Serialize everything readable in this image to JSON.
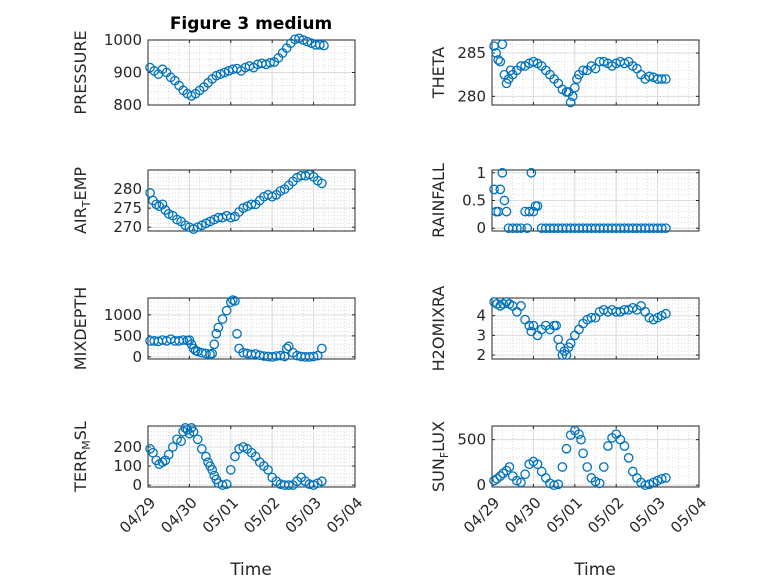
{
  "figure": {
    "title": "Figure 3 medium",
    "xlabel": "Time"
  },
  "x_ticks": [
    "04/29",
    "04/30",
    "05/01",
    "05/02",
    "05/03",
    "05/04"
  ],
  "marker_color": "#0072BD",
  "chart_data": [
    {
      "type": "scatter",
      "id": "pressure",
      "ylabel": "PRESSURE",
      "ylabel_main": "PRESSURE",
      "ylabel_sub": "",
      "ylabel_rest": "",
      "ylim": [
        800,
        1000
      ],
      "yticks": [
        800,
        900,
        1000
      ],
      "xlim": [
        0,
        5
      ],
      "grid": true,
      "x": [
        0.05,
        0.15,
        0.25,
        0.35,
        0.45,
        0.55,
        0.65,
        0.75,
        0.85,
        0.95,
        1.05,
        1.15,
        1.25,
        1.35,
        1.45,
        1.55,
        1.65,
        1.75,
        1.85,
        1.95,
        2.05,
        2.15,
        2.25,
        2.35,
        2.45,
        2.55,
        2.65,
        2.75,
        2.85,
        2.95,
        3.05,
        3.15,
        3.25,
        3.35,
        3.45,
        3.55,
        3.65,
        3.75,
        3.85,
        3.95,
        4.05,
        4.15,
        4.25
      ],
      "y": [
        915,
        905,
        895,
        910,
        900,
        885,
        875,
        860,
        845,
        835,
        828,
        835,
        845,
        855,
        868,
        880,
        890,
        895,
        900,
        905,
        910,
        912,
        905,
        915,
        920,
        915,
        925,
        928,
        925,
        930,
        932,
        945,
        960,
        975,
        990,
        1002,
        1005,
        1000,
        995,
        990,
        985,
        985,
        983
      ]
    },
    {
      "type": "scatter",
      "id": "theta",
      "ylabel": "THETA",
      "ylabel_main": "THETA",
      "ylabel_sub": "",
      "ylabel_rest": "",
      "ylim": [
        279,
        286.5
      ],
      "yticks": [
        280,
        285
      ],
      "xlim": [
        0,
        5
      ],
      "grid": true,
      "x": [
        0.05,
        0.1,
        0.15,
        0.2,
        0.25,
        0.3,
        0.35,
        0.4,
        0.45,
        0.5,
        0.6,
        0.7,
        0.8,
        0.9,
        1.0,
        1.1,
        1.2,
        1.3,
        1.4,
        1.5,
        1.6,
        1.7,
        1.8,
        1.85,
        1.9,
        1.95,
        2.0,
        2.05,
        2.1,
        2.2,
        2.3,
        2.4,
        2.5,
        2.6,
        2.7,
        2.8,
        2.9,
        3.0,
        3.1,
        3.2,
        3.3,
        3.4,
        3.5,
        3.6,
        3.7,
        3.8,
        3.9,
        4.0,
        4.1,
        4.2
      ],
      "y": [
        285.8,
        285,
        284.2,
        284,
        286,
        282.5,
        281.5,
        282,
        283,
        282.5,
        283,
        283.5,
        283.5,
        283.8,
        284,
        283.8,
        283.5,
        283,
        282.5,
        282,
        281.5,
        280.8,
        280.5,
        280.5,
        279.3,
        280,
        281,
        282,
        282.5,
        283,
        283,
        283.5,
        283.2,
        284,
        284,
        283.8,
        283.5,
        283.8,
        284,
        283.8,
        284,
        283.5,
        283.2,
        282.5,
        282,
        282.3,
        282.2,
        282,
        282,
        282
      ]
    },
    {
      "type": "scatter",
      "id": "airtemp",
      "ylabel": "AIR_TEMP",
      "ylabel_main": "AIR",
      "ylabel_sub": "T",
      "ylabel_rest": "EMP",
      "ylim": [
        269,
        285
      ],
      "yticks": [
        270,
        275,
        280
      ],
      "xlim": [
        0,
        5
      ],
      "grid": true,
      "x": [
        0.05,
        0.12,
        0.2,
        0.27,
        0.35,
        0.42,
        0.5,
        0.6,
        0.7,
        0.8,
        0.9,
        1.0,
        1.1,
        1.2,
        1.3,
        1.4,
        1.5,
        1.6,
        1.7,
        1.8,
        1.9,
        2.0,
        2.1,
        2.2,
        2.3,
        2.4,
        2.5,
        2.6,
        2.7,
        2.8,
        2.9,
        3.0,
        3.1,
        3.2,
        3.3,
        3.4,
        3.5,
        3.6,
        3.7,
        3.8,
        3.9,
        4.0,
        4.1,
        4.2
      ],
      "y": [
        279,
        277,
        276,
        275.5,
        276,
        274.5,
        273.5,
        273,
        272,
        271.5,
        270.5,
        270,
        269.5,
        270,
        270.5,
        271,
        271.5,
        272,
        272.5,
        272.5,
        273,
        272.5,
        272.8,
        274,
        275,
        275.5,
        276,
        276,
        277,
        278,
        278.5,
        278,
        278.5,
        279.5,
        280,
        281,
        282,
        283,
        283.5,
        283.5,
        283.8,
        283.2,
        282.2,
        281.5
      ]
    },
    {
      "type": "scatter",
      "id": "rainfall",
      "ylabel": "RAINFALL",
      "ylabel_main": "RAINFALL",
      "ylabel_sub": "",
      "ylabel_rest": "",
      "ylim": [
        -0.05,
        1.05
      ],
      "yticks": [
        0,
        0.5,
        1
      ],
      "ytick_labels": [
        "0",
        "0.5",
        "1"
      ],
      "xlim": [
        0,
        5
      ],
      "grid": true,
      "x": [
        0.05,
        0.1,
        0.15,
        0.2,
        0.25,
        0.3,
        0.35,
        0.4,
        0.5,
        0.6,
        0.7,
        0.8,
        0.85,
        0.9,
        0.95,
        1.0,
        1.05,
        1.1,
        1.2,
        1.3,
        1.4,
        1.5,
        1.6,
        1.7,
        1.8,
        1.9,
        2.0,
        2.1,
        2.2,
        2.3,
        2.4,
        2.5,
        2.6,
        2.7,
        2.8,
        2.9,
        3.0,
        3.1,
        3.2,
        3.3,
        3.4,
        3.5,
        3.6,
        3.7,
        3.8,
        3.9,
        4.0,
        4.1,
        4.2
      ],
      "y": [
        0.7,
        0.3,
        0.3,
        0.7,
        1.0,
        0.5,
        0.3,
        0,
        0,
        0,
        0,
        0.3,
        0,
        0.3,
        1.0,
        0.3,
        0.4,
        0.4,
        0,
        0,
        0,
        0,
        0,
        0,
        0,
        0,
        0,
        0,
        0,
        0,
        0,
        0,
        0,
        0,
        0,
        0,
        0,
        0,
        0,
        0,
        0,
        0,
        0,
        0,
        0,
        0,
        0,
        0,
        0
      ]
    },
    {
      "type": "scatter",
      "id": "mixdepth",
      "ylabel": "MIXDEPTH",
      "ylabel_main": "MIXDEPTH",
      "ylabel_sub": "",
      "ylabel_rest": "",
      "ylim": [
        -50,
        1400
      ],
      "yticks": [
        0,
        500,
        1000
      ],
      "xlim": [
        0,
        5
      ],
      "grid": true,
      "x": [
        0.05,
        0.15,
        0.25,
        0.35,
        0.45,
        0.55,
        0.65,
        0.75,
        0.85,
        0.95,
        1.0,
        1.05,
        1.1,
        1.15,
        1.2,
        1.3,
        1.4,
        1.5,
        1.55,
        1.6,
        1.65,
        1.7,
        1.8,
        1.9,
        2.0,
        2.05,
        2.1,
        2.15,
        2.2,
        2.3,
        2.4,
        2.5,
        2.6,
        2.7,
        2.8,
        2.9,
        3.0,
        3.1,
        3.2,
        3.3,
        3.35,
        3.4,
        3.5,
        3.6,
        3.7,
        3.8,
        3.9,
        4.0,
        4.1,
        4.2
      ],
      "y": [
        380,
        380,
        370,
        400,
        380,
        420,
        380,
        380,
        400,
        390,
        400,
        300,
        200,
        150,
        130,
        100,
        80,
        60,
        80,
        300,
        550,
        700,
        900,
        1100,
        1300,
        1350,
        1330,
        550,
        200,
        100,
        80,
        60,
        70,
        40,
        20,
        10,
        0,
        20,
        30,
        10,
        200,
        250,
        100,
        30,
        10,
        0,
        0,
        10,
        30,
        200
      ]
    },
    {
      "type": "scatter",
      "id": "h2omixra",
      "ylabel": "H2OMIXRA",
      "ylabel_main": "H2OMIXRA",
      "ylabel_sub": "",
      "ylabel_rest": "",
      "ylim": [
        1.8,
        4.9
      ],
      "yticks": [
        2,
        3,
        4
      ],
      "xlim": [
        0,
        5
      ],
      "grid": true,
      "x": [
        0.05,
        0.12,
        0.2,
        0.27,
        0.35,
        0.42,
        0.5,
        0.6,
        0.7,
        0.8,
        0.9,
        0.95,
        1.0,
        1.1,
        1.2,
        1.3,
        1.4,
        1.5,
        1.55,
        1.6,
        1.65,
        1.7,
        1.75,
        1.8,
        1.85,
        1.9,
        2.0,
        2.1,
        2.2,
        2.3,
        2.4,
        2.5,
        2.6,
        2.7,
        2.8,
        2.9,
        3.0,
        3.1,
        3.2,
        3.3,
        3.4,
        3.5,
        3.6,
        3.7,
        3.8,
        3.9,
        4.0,
        4.1,
        4.2
      ],
      "y": [
        4.7,
        4.6,
        4.5,
        4.6,
        4.7,
        4.6,
        4.5,
        4.2,
        4.5,
        3.8,
        3.5,
        3.2,
        3.5,
        3.0,
        3.3,
        3.5,
        3.3,
        3.5,
        3.5,
        2.8,
        2.4,
        2.0,
        2.2,
        2.0,
        2.4,
        2.6,
        3.0,
        3.3,
        3.6,
        3.8,
        3.9,
        3.9,
        4.2,
        4.3,
        4.2,
        4.3,
        4.2,
        4.2,
        4.3,
        4.3,
        4.4,
        4.3,
        4.5,
        4.2,
        3.9,
        3.8,
        3.9,
        4.0,
        4.1
      ]
    },
    {
      "type": "scatter",
      "id": "terrmsl",
      "ylabel": "TERR_MSL",
      "ylabel_main": "TERR",
      "ylabel_sub": "M",
      "ylabel_rest": "SL",
      "ylim": [
        -10,
        310
      ],
      "yticks": [
        0,
        100,
        200
      ],
      "xlim": [
        0,
        5
      ],
      "grid": true,
      "x": [
        0.05,
        0.12,
        0.2,
        0.27,
        0.35,
        0.42,
        0.5,
        0.6,
        0.7,
        0.8,
        0.85,
        0.9,
        0.95,
        1.0,
        1.05,
        1.1,
        1.2,
        1.3,
        1.4,
        1.45,
        1.5,
        1.55,
        1.6,
        1.65,
        1.7,
        1.8,
        1.9,
        2.0,
        2.1,
        2.2,
        2.3,
        2.4,
        2.5,
        2.6,
        2.7,
        2.8,
        2.9,
        3.0,
        3.1,
        3.2,
        3.3,
        3.4,
        3.5,
        3.6,
        3.7,
        3.8,
        3.9,
        4.0,
        4.1,
        4.2
      ],
      "y": [
        190,
        170,
        130,
        110,
        120,
        130,
        160,
        200,
        240,
        230,
        280,
        300,
        290,
        270,
        300,
        280,
        240,
        190,
        150,
        120,
        100,
        80,
        50,
        30,
        10,
        0,
        5,
        80,
        150,
        190,
        200,
        190,
        170,
        150,
        120,
        100,
        80,
        40,
        20,
        5,
        0,
        0,
        0,
        20,
        40,
        20,
        5,
        0,
        10,
        20
      ]
    },
    {
      "type": "scatter",
      "id": "sunflux",
      "ylabel": "SUN_FLUX",
      "ylabel_main": "SUN",
      "ylabel_sub": "F",
      "ylabel_rest": "LUX",
      "ylim": [
        -20,
        650
      ],
      "yticks": [
        0,
        500
      ],
      "xlim": [
        0,
        5
      ],
      "grid": true,
      "x": [
        0.05,
        0.12,
        0.2,
        0.27,
        0.35,
        0.42,
        0.5,
        0.6,
        0.7,
        0.8,
        0.9,
        1.0,
        1.1,
        1.2,
        1.3,
        1.4,
        1.5,
        1.6,
        1.7,
        1.8,
        1.9,
        2.0,
        2.1,
        2.15,
        2.2,
        2.3,
        2.4,
        2.5,
        2.6,
        2.7,
        2.8,
        2.9,
        3.0,
        3.1,
        3.2,
        3.3,
        3.4,
        3.5,
        3.6,
        3.7,
        3.8,
        3.9,
        4.0,
        4.1,
        4.2
      ],
      "y": [
        50,
        70,
        100,
        130,
        160,
        200,
        100,
        50,
        30,
        120,
        230,
        260,
        230,
        150,
        80,
        20,
        0,
        10,
        200,
        400,
        550,
        600,
        560,
        500,
        350,
        200,
        80,
        40,
        20,
        200,
        430,
        520,
        560,
        500,
        430,
        300,
        150,
        80,
        30,
        0,
        10,
        30,
        50,
        70,
        80
      ]
    }
  ]
}
